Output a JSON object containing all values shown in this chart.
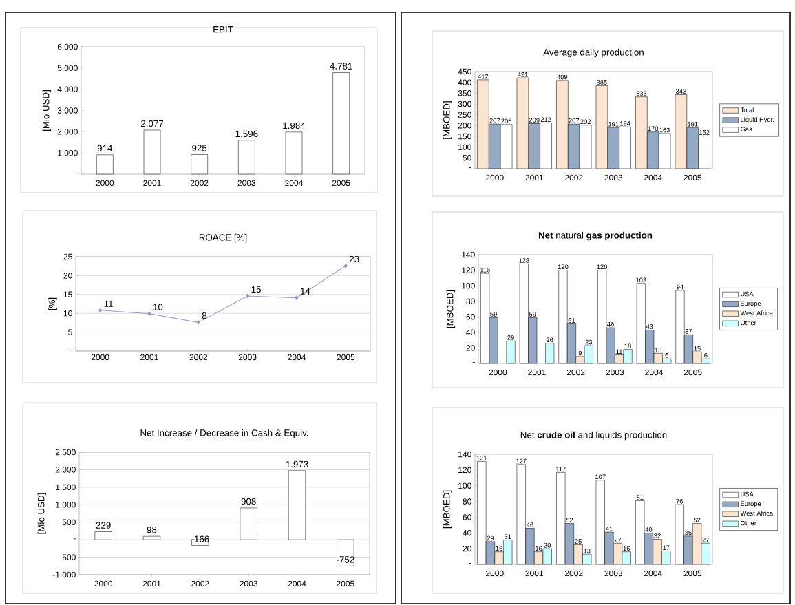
{
  "chart_data": [
    {
      "type": "bar",
      "title": "EBIT",
      "ylabel": "[Mio USD]",
      "categories": [
        "2000",
        "2001",
        "2002",
        "2003",
        "2004",
        "2005"
      ],
      "values": [
        914,
        2077,
        925,
        1596,
        1984,
        4781
      ],
      "value_labels": [
        "914",
        "2.077",
        "925",
        "1.596",
        "1.984",
        "4.781"
      ],
      "color": "#ffffff",
      "ylim": [
        0,
        6000
      ],
      "yticks": [
        {
          "value": 0,
          "label": "-"
        },
        {
          "value": 1000,
          "label": "1.000"
        },
        {
          "value": 2000,
          "label": "2.000"
        },
        {
          "value": 3000,
          "label": "3.000"
        },
        {
          "value": 4000,
          "label": "4.000"
        },
        {
          "value": 5000,
          "label": "5.000"
        },
        {
          "value": 6000,
          "label": "6.000"
        }
      ]
    },
    {
      "type": "bar",
      "title": "Average daily production",
      "ylabel": "[MBOED]",
      "categories": [
        "2000",
        "2001",
        "2002",
        "2003",
        "2004",
        "2005"
      ],
      "series": [
        {
          "name": "Total",
          "color": "#fbe5d0",
          "values": [
            412,
            421,
            409,
            385,
            333,
            343
          ]
        },
        {
          "name": "Liquid Hydr.",
          "color": "#95a8c4",
          "values": [
            207,
            209,
            207,
            191,
            170,
            191
          ]
        },
        {
          "name": "Gas",
          "color": "#ffffff",
          "values": [
            205,
            212,
            202,
            194,
            163,
            152
          ]
        }
      ],
      "data_labels": true,
      "legend": "right",
      "ylim": [
        0,
        450
      ],
      "yticks": [
        {
          "value": 0,
          "label": "-"
        },
        50,
        100,
        150,
        200,
        250,
        300,
        350,
        400,
        450
      ]
    },
    {
      "type": "line",
      "title": "ROACE [%]",
      "ylabel": "[%]",
      "categories": [
        "2000",
        "2001",
        "2002",
        "2003",
        "2004",
        "2005"
      ],
      "values": [
        10.8,
        9.9,
        7.6,
        14.6,
        14.1,
        22.6
      ],
      "value_labels": [
        "11",
        "10",
        "8",
        "15",
        "14",
        "23"
      ],
      "color": "#9999cc",
      "marker": "diamond",
      "grid": "y",
      "ylim": [
        0,
        25
      ],
      "yticks": [
        {
          "value": 0,
          "label": "-"
        },
        5,
        10,
        15,
        20,
        25
      ]
    },
    {
      "type": "bar",
      "title": "**Net** natural **gas production**",
      "ylabel": "[MBOED]",
      "categories": [
        "2000",
        "2001",
        "2002",
        "2003",
        "2004",
        "2005"
      ],
      "series": [
        {
          "name": "USA",
          "color": "#ffffff",
          "values": [
            116,
            128,
            120,
            120,
            103,
            94
          ]
        },
        {
          "name": "Europe",
          "color": "#95a8c4",
          "values": [
            59,
            59,
            51,
            46,
            43,
            37
          ]
        },
        {
          "name": "West Africa",
          "color": "#fbe5d0",
          "values": [
            null,
            null,
            9,
            11,
            13,
            15
          ]
        },
        {
          "name": "Other",
          "color": "#ccffff",
          "values": [
            29,
            26,
            23,
            18,
            6,
            6
          ]
        }
      ],
      "data_labels": true,
      "legend": "right",
      "ylim": [
        0,
        140
      ],
      "yticks": [
        {
          "value": 0,
          "label": "-"
        },
        20,
        40,
        60,
        80,
        100,
        120,
        140
      ]
    },
    {
      "type": "bar",
      "title": "Net Increase / Decrease in Cash & Equiv.",
      "ylabel": "[Mio USD]",
      "categories": [
        "2000",
        "2001",
        "2002",
        "2003",
        "2004",
        "2005"
      ],
      "values": [
        229,
        98,
        -166,
        908,
        1973,
        -752
      ],
      "value_labels": [
        "229",
        "98",
        "-166",
        "908",
        "1.973",
        "-752"
      ],
      "color": "#ffffff",
      "grid": "y",
      "ylim": [
        -1000,
        2500
      ],
      "yticks": [
        {
          "value": -1000,
          "label": "-1.000"
        },
        -500,
        {
          "value": 0,
          "label": "-"
        },
        500,
        {
          "value": 1000,
          "label": "1.000"
        },
        {
          "value": 1500,
          "label": "1.500"
        },
        {
          "value": 2000,
          "label": "2.000"
        },
        {
          "value": 2500,
          "label": "2.500"
        }
      ]
    },
    {
      "type": "bar",
      "title": "Net **crude oil** and liquids production",
      "ylabel": "[MBOED]",
      "categories": [
        "2000",
        "2001",
        "2002",
        "2003",
        "2004",
        "2005"
      ],
      "series": [
        {
          "name": "USA",
          "color": "#ffffff",
          "values": [
            131,
            127,
            117,
            107,
            81,
            76
          ]
        },
        {
          "name": "Europe",
          "color": "#95a8c4",
          "values": [
            29,
            46,
            52,
            41,
            40,
            36
          ]
        },
        {
          "name": "West Africa",
          "color": "#fbe5d0",
          "values": [
            16,
            16,
            25,
            27,
            32,
            52
          ]
        },
        {
          "name": "Other",
          "color": "#ccffff",
          "values": [
            31,
            20,
            13,
            16,
            17,
            27
          ]
        }
      ],
      "data_labels": true,
      "legend": "right",
      "ylim": [
        0,
        140
      ],
      "yticks": [
        {
          "value": 0,
          "label": "-"
        },
        20,
        40,
        60,
        80,
        100,
        120,
        140
      ]
    }
  ]
}
